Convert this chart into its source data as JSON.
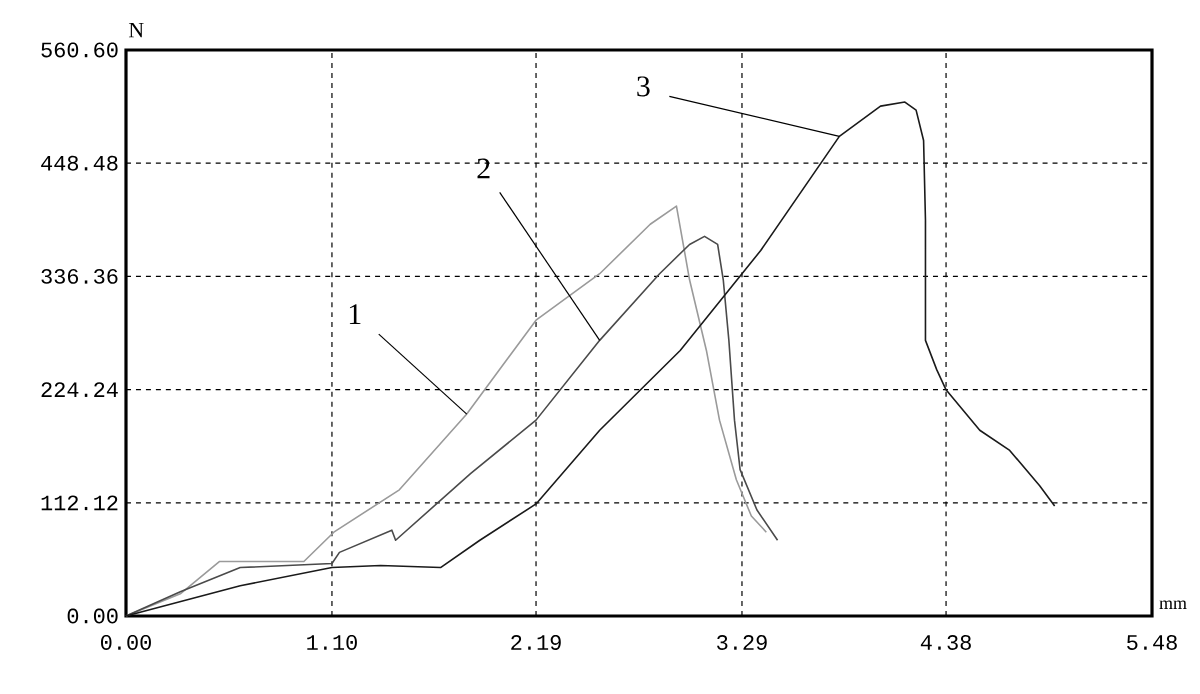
{
  "chart_data": {
    "type": "line",
    "xlabel": "mm",
    "ylabel": "N",
    "xlim": [
      0,
      5.48
    ],
    "ylim": [
      0,
      560.6
    ],
    "xticks": [
      {
        "value": 0,
        "label": "0.00"
      },
      {
        "value": 1.1,
        "label": "1.10"
      },
      2.19,
      3.29,
      4.38,
      5.48
    ],
    "yticks": [
      {
        "value": 0,
        "label": "0.00"
      },
      112.12,
      224.24,
      336.36,
      448.48,
      {
        "value": 560.6,
        "label": "560.60"
      }
    ],
    "grid": true,
    "marker": "none",
    "line_style": "solid",
    "series": [
      {
        "color": "#9a9a9a",
        "x": [
          0,
          0.29,
          0.5,
          0.95,
          1.11,
          1.46,
          1.82,
          2.19,
          2.53,
          2.8,
          2.94,
          3.01,
          3.1,
          3.17,
          3.26,
          3.34,
          3.42
        ],
        "values": [
          0,
          22,
          54,
          54,
          83,
          125,
          200,
          293,
          339,
          388,
          406,
          333,
          263,
          194,
          135,
          99,
          83
        ]
      },
      {
        "color": "#4a4a4a",
        "x": [
          0,
          0.29,
          0.61,
          1.1,
          1.14,
          1.42,
          1.44,
          1.84,
          2.19,
          2.53,
          2.85,
          3.01,
          3.09,
          3.16,
          3.19,
          3.22,
          3.25,
          3.28,
          3.37,
          3.48
        ],
        "values": [
          0,
          24,
          48,
          52,
          63,
          85,
          75,
          141,
          194,
          273,
          339,
          368,
          376,
          368,
          333,
          273,
          194,
          145,
          105,
          75
        ]
      },
      {
        "color": "#1a1a1a",
        "x": [
          0,
          0.61,
          1.1,
          1.36,
          1.68,
          1.89,
          2.19,
          2.53,
          2.96,
          3.39,
          3.81,
          4.03,
          4.16,
          4.22,
          4.26,
          4.27,
          4.27,
          4.33,
          4.38,
          4.56,
          4.72,
          4.88,
          4.96
        ],
        "values": [
          0,
          30,
          48,
          50,
          48,
          75,
          111,
          184,
          263,
          362,
          475,
          505,
          509,
          501,
          471,
          392,
          273,
          244,
          224,
          184,
          164,
          129,
          109
        ]
      }
    ],
    "annotations": [
      {
        "text": "1",
        "x": 1.82,
        "y": 200
      },
      {
        "text": "2",
        "x": 2.53,
        "y": 273
      },
      {
        "text": "3",
        "x": 3.81,
        "y": 475
      }
    ]
  }
}
